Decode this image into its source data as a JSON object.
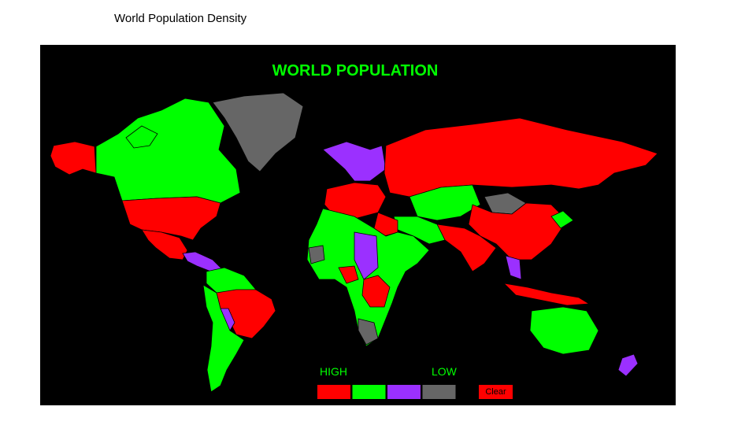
{
  "slide": {
    "title": "World Population Density"
  },
  "map": {
    "title": "WORLD POPULATION",
    "legend": {
      "high_label": "HIGH",
      "low_label": "LOW",
      "swatches": [
        {
          "color": "#ff0000"
        },
        {
          "color": "#00ff00"
        },
        {
          "color": "#9b30ff"
        },
        {
          "color": "#666666"
        }
      ]
    },
    "clear_button": "Clear"
  }
}
